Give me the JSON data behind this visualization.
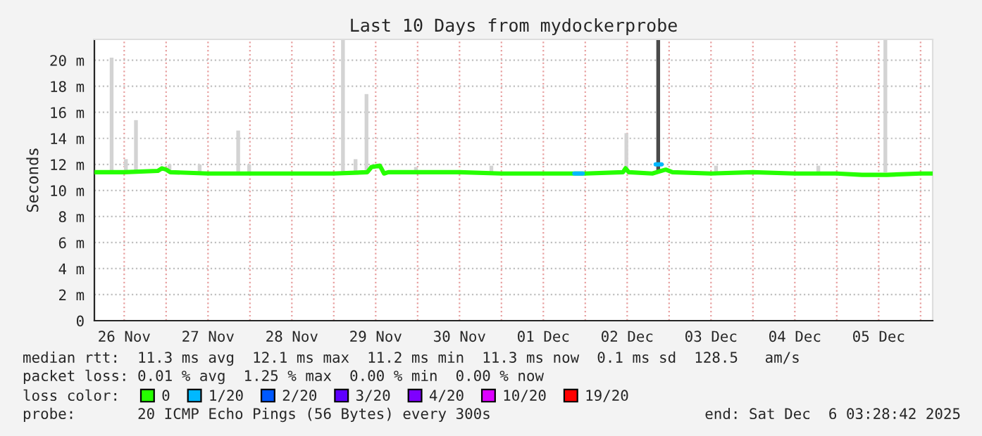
{
  "chart_data": {
    "type": "line",
    "title": "Last 10 Days from mydockerprobe",
    "ylabel": "Seconds",
    "xlim": [
      "2025-11-26T03:28",
      "2025-12-06T03:28"
    ],
    "ylim": [
      0,
      21.6
    ],
    "xticks": [
      {
        "value": "2025-11-26T12:00",
        "label": "26 Nov"
      },
      {
        "value": "2025-11-27T00:00",
        "label": null
      },
      {
        "value": "2025-11-27T12:00",
        "label": "27 Nov"
      },
      {
        "value": "2025-11-28T00:00",
        "label": null
      },
      {
        "value": "2025-11-28T12:00",
        "label": "28 Nov"
      },
      {
        "value": "2025-11-29T00:00",
        "label": null
      },
      {
        "value": "2025-11-29T12:00",
        "label": "29 Nov"
      },
      {
        "value": "2025-11-30T00:00",
        "label": null
      },
      {
        "value": "2025-11-30T12:00",
        "label": "30 Nov"
      },
      {
        "value": "2025-12-01T00:00",
        "label": null
      },
      {
        "value": "2025-12-01T12:00",
        "label": "01 Dec"
      },
      {
        "value": "2025-12-02T00:00",
        "label": null
      },
      {
        "value": "2025-12-02T12:00",
        "label": "02 Dec"
      },
      {
        "value": "2025-12-03T00:00",
        "label": null
      },
      {
        "value": "2025-12-03T12:00",
        "label": "03 Dec"
      },
      {
        "value": "2025-12-04T00:00",
        "label": null
      },
      {
        "value": "2025-12-04T12:00",
        "label": "04 Dec"
      },
      {
        "value": "2025-12-05T00:00",
        "label": null
      },
      {
        "value": "2025-12-05T12:00",
        "label": "05 Dec"
      },
      {
        "value": "2025-12-06T00:00",
        "label": null
      }
    ],
    "yticks": [
      0,
      {
        "value": 2,
        "label": "2 m"
      },
      {
        "value": 4,
        "label": "4 m"
      },
      {
        "value": 6,
        "label": "6 m"
      },
      {
        "value": 8,
        "label": "8 m"
      },
      {
        "value": 10,
        "label": "10 m"
      },
      {
        "value": 12,
        "label": "12 m"
      },
      {
        "value": 14,
        "label": "14 m"
      },
      {
        "value": 16,
        "label": "16 m"
      },
      {
        "value": 18,
        "label": "18 m"
      },
      {
        "value": 20,
        "label": "20 m"
      }
    ],
    "grid": true,
    "legend": "bottom",
    "legend_title": "loss color:",
    "series": [
      {
        "type": "bar",
        "base": [
          11.4,
          11.4,
          11.4,
          11.4,
          11.4,
          11.4,
          11.4,
          11.4,
          11.4,
          11.4,
          11.4,
          11.4,
          null,
          11.4,
          11.4,
          11.4,
          11.4,
          11.4
        ],
        "x": [
          "2025-11-26T08:24",
          "2025-11-26T12:29",
          "2025-11-26T15:22",
          "2025-11-27T00:58",
          "2025-11-27T09:36",
          "2025-11-27T20:38",
          "2025-11-27T23:46",
          "2025-11-29T02:38",
          "2025-11-29T06:14",
          "2025-11-29T09:22",
          "2025-11-29T23:31",
          "2025-11-30T21:07",
          "2025-12-02T10:34",
          "2025-12-02T11:46",
          "2025-12-02T20:53",
          "2025-12-03T13:26",
          "2025-12-04T18:43",
          "2025-12-05T13:55"
        ],
        "values": [
          8.8,
          1.0,
          4.0,
          0.6,
          0.6,
          3.2,
          0.6,
          10.2,
          1.0,
          6.0,
          0.4,
          0.5,
          null,
          3.0,
          10.2,
          0.5,
          0.5,
          10.2
        ],
        "colors": [
          "#d3d3d3",
          "#d3d3d3",
          "#d3d3d3",
          "#d3d3d3",
          "#d3d3d3",
          "#d3d3d3",
          "#d3d3d3",
          "#d3d3d3",
          "#d3d3d3",
          "#d3d3d3",
          "#d3d3d3",
          "#d3d3d3",
          "#d3d3d3",
          "#d3d3d3",
          "#4a4a4a",
          "#d3d3d3",
          "#d3d3d3",
          "#d3d3d3"
        ]
      },
      {
        "name": "0",
        "color": "#26ff00",
        "x": [
          "2025-11-26T03:36",
          "2025-11-26T12:00",
          "2025-11-26T21:36",
          "2025-11-26T22:48",
          "2025-11-27T00:00",
          "2025-11-27T01:12",
          "2025-11-27T12:00",
          "2025-11-28T00:00",
          "2025-11-28T12:00",
          "2025-11-29T00:00",
          "2025-11-29T09:36",
          "2025-11-29T10:48",
          "2025-11-29T13:12",
          "2025-11-29T14:24",
          "2025-11-29T15:36",
          "2025-11-30T00:00",
          "2025-11-30T12:00",
          "2025-12-01T00:00",
          "2025-12-01T12:00",
          "2025-12-01T20:24",
          "2025-12-02T00:00",
          "2025-12-02T10:48",
          "2025-12-02T11:31",
          "2025-12-02T12:29",
          "2025-12-02T19:12",
          "2025-12-02T23:02",
          "2025-12-03T00:58",
          "2025-12-03T12:00",
          "2025-12-04T00:00",
          "2025-12-04T12:00",
          "2025-12-05T00:00",
          "2025-12-05T07:12",
          "2025-12-05T14:24",
          "2025-12-06T00:00",
          "2025-12-06T03:22"
        ],
        "values": [
          11.4,
          11.4,
          11.5,
          11.7,
          11.6,
          11.4,
          11.3,
          11.3,
          11.3,
          11.3,
          11.4,
          11.8,
          11.9,
          11.3,
          11.4,
          11.4,
          11.4,
          11.3,
          11.3,
          11.3,
          11.3,
          11.4,
          11.7,
          11.4,
          11.3,
          11.6,
          11.4,
          11.3,
          11.4,
          11.3,
          11.3,
          11.2,
          11.2,
          11.3,
          11.3
        ]
      },
      {
        "name": "1/20",
        "color": "#00b8ff",
        "x": [
          "2025-12-01T20:53",
          "2025-12-01T23:17",
          "2025-12-02T09:36",
          "2025-12-02T20:10",
          "2025-12-02T21:50"
        ],
        "values": [
          11.3,
          11.3,
          null,
          12.0,
          12.0
        ]
      },
      {
        "name": "2/20",
        "color": "#0059ff"
      },
      {
        "name": "3/20",
        "color": "#5e00ff"
      },
      {
        "name": "4/20",
        "color": "#7e00ff"
      },
      {
        "name": "10/20",
        "color": "#dd00ff"
      },
      {
        "name": "19/20",
        "color": "#ff0000"
      }
    ],
    "annotations": [
      "median rtt:  11.3 ms avg  12.1 ms max  11.2 ms min  11.3 ms now  0.1 ms sd  128.5   am/s",
      "packet loss: 0.01 % avg  1.25 % max  0.00 % min  0.00 % now",
      "probe:       20 ICMP Echo Pings (56 Bytes) every 300s",
      "end: Sat Dec  6 03:28:42 2025"
    ]
  }
}
